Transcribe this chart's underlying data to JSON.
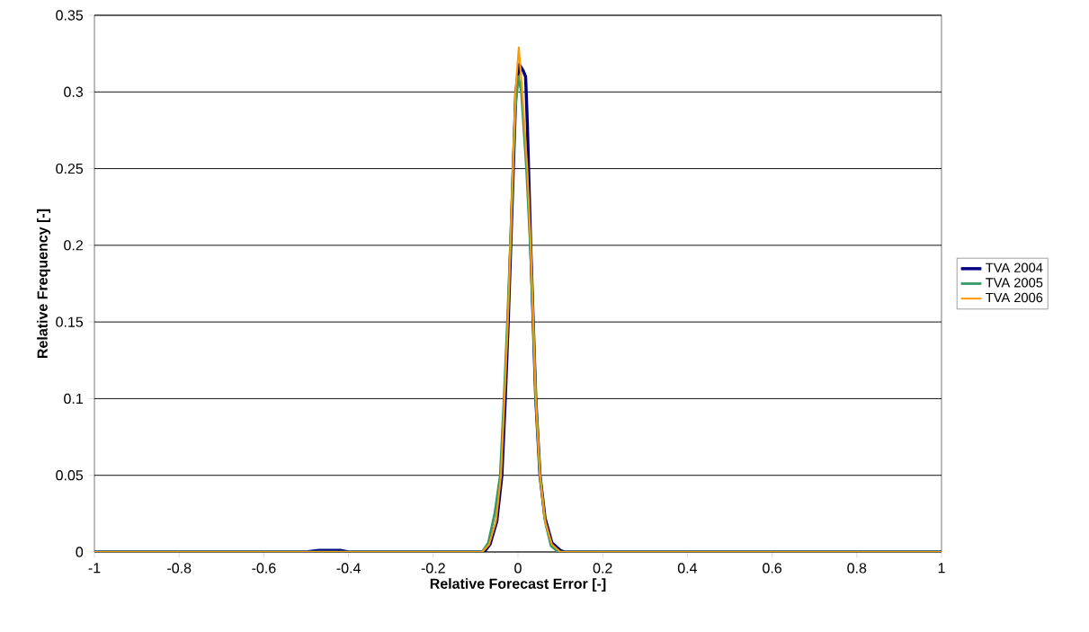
{
  "chart_data": {
    "type": "line",
    "xlabel": "Relative Forecast Error [-]",
    "ylabel": "Relative Frequency [-]",
    "xlim": [
      -1,
      1
    ],
    "xticks": [
      -1,
      -0.8,
      -0.6,
      -0.4,
      -0.2,
      0,
      0.2,
      0.4,
      0.6,
      0.8,
      1
    ],
    "ylim": [
      0,
      0.35
    ],
    "yticks": [
      0,
      0.05,
      0.1,
      0.15,
      0.2,
      0.25,
      0.3,
      0.35
    ],
    "grid": "y",
    "legend": "right",
    "marker": "none",
    "line_style": "solid",
    "series": [
      {
        "name": "TVA 2004",
        "color": "#000080",
        "x": [
          -1,
          -0.5,
          -0.47,
          -0.42,
          -0.4,
          -0.08,
          -0.066,
          -0.05,
          -0.038,
          -0.03,
          -0.023,
          -0.017,
          -0.011,
          -0.005,
          0.003,
          0.012,
          0.018,
          0.022,
          0.03,
          0.036,
          0.042,
          0.052,
          0.064,
          0.08,
          0.1,
          0.11,
          1
        ],
        "values": [
          0,
          0,
          0.001,
          0.001,
          0,
          0,
          0.005,
          0.02,
          0.05,
          0.1,
          0.15,
          0.2,
          0.25,
          0.3,
          0.318,
          0.314,
          0.31,
          0.28,
          0.2,
          0.15,
          0.1,
          0.05,
          0.022,
          0.006,
          0.001,
          0,
          0
        ]
      },
      {
        "name": "TVA 2005",
        "color": "#339966",
        "x": [
          -1,
          -0.085,
          -0.07,
          -0.055,
          -0.042,
          -0.033,
          -0.025,
          -0.018,
          -0.012,
          -0.006,
          0.001,
          0.008,
          0.02,
          0.029,
          0.036,
          0.042,
          0.052,
          0.064,
          0.078,
          0.095,
          1
        ],
        "values": [
          0,
          0,
          0.006,
          0.025,
          0.05,
          0.1,
          0.15,
          0.2,
          0.25,
          0.29,
          0.31,
          0.3,
          0.25,
          0.2,
          0.15,
          0.1,
          0.05,
          0.02,
          0.004,
          0,
          0
        ]
      },
      {
        "name": "TVA 2006",
        "color": "#ff9900",
        "x": [
          -1,
          -0.084,
          -0.068,
          -0.052,
          -0.04,
          -0.032,
          -0.024,
          -0.018,
          -0.012,
          -0.006,
          0.002,
          0.01,
          0.022,
          0.03,
          0.036,
          0.042,
          0.052,
          0.064,
          0.08,
          0.1,
          1
        ],
        "values": [
          0,
          0,
          0.005,
          0.02,
          0.05,
          0.1,
          0.15,
          0.2,
          0.25,
          0.3,
          0.329,
          0.3,
          0.25,
          0.2,
          0.15,
          0.1,
          0.05,
          0.02,
          0.005,
          0,
          0
        ]
      }
    ]
  }
}
